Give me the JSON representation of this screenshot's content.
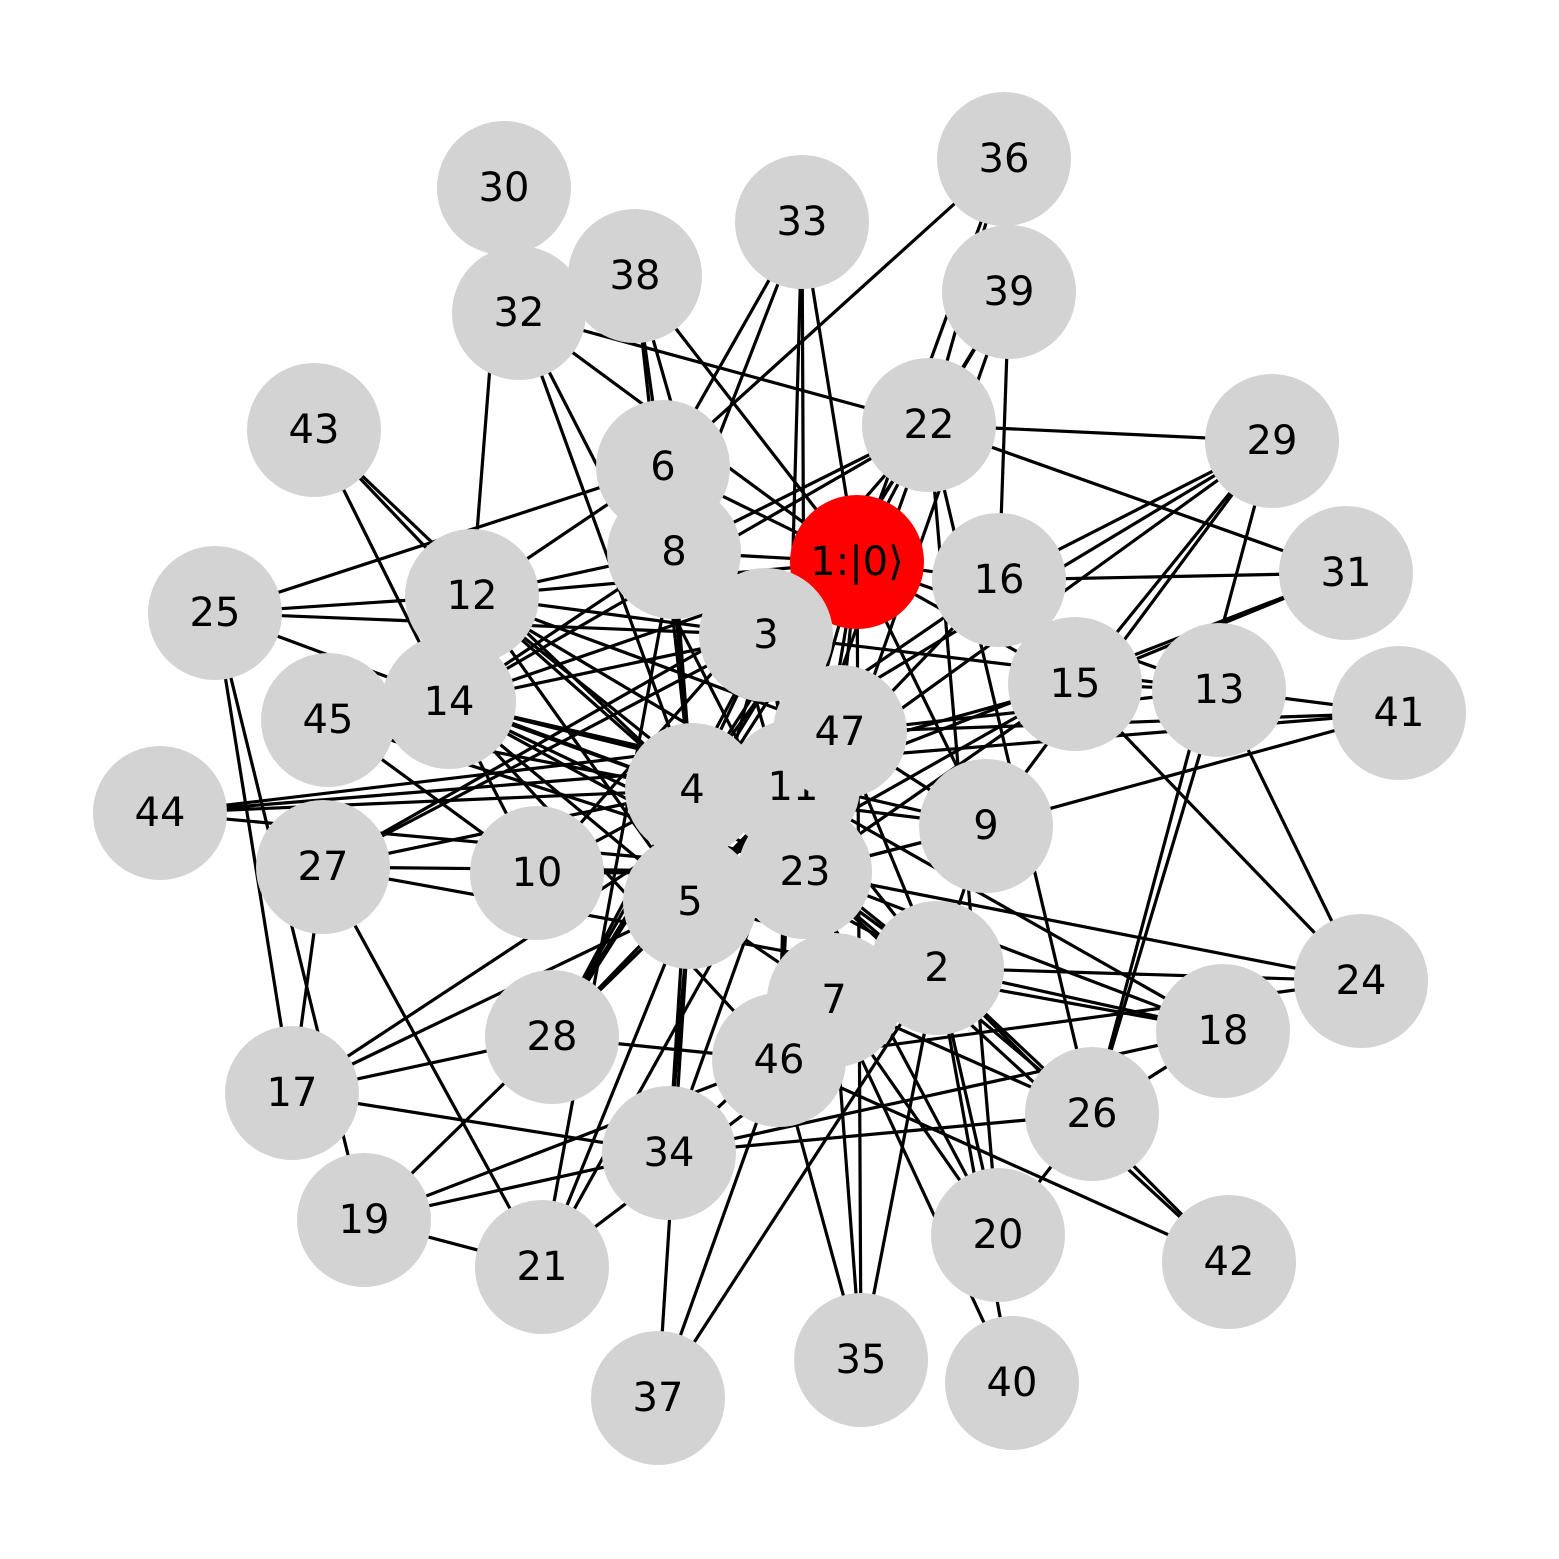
{
  "graph": {
    "node_color": "#d3d3d3",
    "highlight_color": "#ff0000",
    "edge_color": "#000000",
    "nodes": [
      {
        "id": 1,
        "label": "1:|0⟩",
        "highlight": true
      },
      {
        "id": 2,
        "label": "2"
      },
      {
        "id": 3,
        "label": "3"
      },
      {
        "id": 4,
        "label": "4"
      },
      {
        "id": 5,
        "label": "5"
      },
      {
        "id": 6,
        "label": "6"
      },
      {
        "id": 7,
        "label": "7"
      },
      {
        "id": 8,
        "label": "8"
      },
      {
        "id": 9,
        "label": "9"
      },
      {
        "id": 10,
        "label": "10"
      },
      {
        "id": 11,
        "label": "11"
      },
      {
        "id": 12,
        "label": "12"
      },
      {
        "id": 13,
        "label": "13"
      },
      {
        "id": 14,
        "label": "14"
      },
      {
        "id": 15,
        "label": "15"
      },
      {
        "id": 16,
        "label": "16"
      },
      {
        "id": 17,
        "label": "17"
      },
      {
        "id": 18,
        "label": "18"
      },
      {
        "id": 19,
        "label": "19"
      },
      {
        "id": 20,
        "label": "20"
      },
      {
        "id": 21,
        "label": "21"
      },
      {
        "id": 22,
        "label": "22"
      },
      {
        "id": 23,
        "label": "23"
      },
      {
        "id": 24,
        "label": "24"
      },
      {
        "id": 25,
        "label": "25"
      },
      {
        "id": 26,
        "label": "26"
      },
      {
        "id": 27,
        "label": "27"
      },
      {
        "id": 28,
        "label": "28"
      },
      {
        "id": 29,
        "label": "29"
      },
      {
        "id": 30,
        "label": "30"
      },
      {
        "id": 31,
        "label": "31"
      },
      {
        "id": 32,
        "label": "32"
      },
      {
        "id": 33,
        "label": "33"
      },
      {
        "id": 34,
        "label": "34"
      },
      {
        "id": 35,
        "label": "35"
      },
      {
        "id": 36,
        "label": "36"
      },
      {
        "id": 37,
        "label": "37"
      },
      {
        "id": 38,
        "label": "38"
      },
      {
        "id": 39,
        "label": "39"
      },
      {
        "id": 40,
        "label": "40"
      },
      {
        "id": 41,
        "label": "41"
      },
      {
        "id": 42,
        "label": "42"
      },
      {
        "id": 43,
        "label": "43"
      },
      {
        "id": 44,
        "label": "44"
      },
      {
        "id": 45,
        "label": "45"
      },
      {
        "id": 46,
        "label": "46"
      },
      {
        "id": 47,
        "label": "47"
      }
    ],
    "edges": [
      [
        1,
        3
      ],
      [
        1,
        4
      ],
      [
        1,
        5
      ],
      [
        1,
        6
      ],
      [
        1,
        8
      ],
      [
        1,
        9
      ],
      [
        1,
        11
      ],
      [
        1,
        12
      ],
      [
        1,
        13
      ],
      [
        1,
        14
      ],
      [
        1,
        15
      ],
      [
        1,
        16
      ],
      [
        1,
        22
      ],
      [
        1,
        23
      ],
      [
        1,
        27
      ],
      [
        1,
        28
      ],
      [
        1,
        32
      ],
      [
        1,
        33
      ],
      [
        1,
        35
      ],
      [
        1,
        36
      ],
      [
        1,
        38
      ],
      [
        1,
        47
      ],
      [
        2,
        4
      ],
      [
        2,
        5
      ],
      [
        2,
        7
      ],
      [
        2,
        9
      ],
      [
        2,
        11
      ],
      [
        2,
        12
      ],
      [
        2,
        14
      ],
      [
        2,
        18
      ],
      [
        2,
        20
      ],
      [
        2,
        21
      ],
      [
        2,
        23
      ],
      [
        2,
        24
      ],
      [
        2,
        26
      ],
      [
        2,
        35
      ],
      [
        2,
        37
      ],
      [
        2,
        40
      ],
      [
        2,
        42
      ],
      [
        2,
        47
      ],
      [
        3,
        4
      ],
      [
        3,
        5
      ],
      [
        3,
        8
      ],
      [
        3,
        11
      ],
      [
        3,
        12
      ],
      [
        3,
        13
      ],
      [
        3,
        14
      ],
      [
        3,
        23
      ],
      [
        3,
        25
      ],
      [
        3,
        27
      ],
      [
        3,
        28
      ],
      [
        3,
        47
      ],
      [
        4,
        5
      ],
      [
        4,
        6
      ],
      [
        4,
        8
      ],
      [
        4,
        9
      ],
      [
        4,
        10
      ],
      [
        4,
        11
      ],
      [
        4,
        12
      ],
      [
        4,
        14
      ],
      [
        4,
        15
      ],
      [
        4,
        16
      ],
      [
        4,
        22
      ],
      [
        4,
        23
      ],
      [
        4,
        25
      ],
      [
        4,
        27
      ],
      [
        4,
        28
      ],
      [
        4,
        29
      ],
      [
        4,
        32
      ],
      [
        4,
        34
      ],
      [
        4,
        38
      ],
      [
        4,
        43
      ],
      [
        4,
        44
      ],
      [
        4,
        45
      ],
      [
        4,
        47
      ],
      [
        5,
        7
      ],
      [
        5,
        9
      ],
      [
        5,
        11
      ],
      [
        5,
        12
      ],
      [
        5,
        14
      ],
      [
        5,
        15
      ],
      [
        5,
        16
      ],
      [
        5,
        17
      ],
      [
        5,
        19
      ],
      [
        5,
        21
      ],
      [
        5,
        23
      ],
      [
        5,
        28
      ],
      [
        5,
        34
      ],
      [
        5,
        37
      ],
      [
        5,
        47
      ],
      [
        6,
        12
      ],
      [
        6,
        25
      ],
      [
        6,
        33
      ],
      [
        6,
        36
      ],
      [
        6,
        47
      ],
      [
        7,
        11
      ],
      [
        7,
        20
      ],
      [
        7,
        23
      ],
      [
        7,
        26
      ],
      [
        7,
        34
      ],
      [
        7,
        35
      ],
      [
        7,
        40
      ],
      [
        7,
        47
      ],
      [
        8,
        12
      ],
      [
        8,
        14
      ],
      [
        8,
        21
      ],
      [
        8,
        22
      ],
      [
        8,
        33
      ],
      [
        8,
        38
      ],
      [
        9,
        14
      ],
      [
        9,
        23
      ],
      [
        9,
        29
      ],
      [
        9,
        41
      ],
      [
        9,
        47
      ],
      [
        10,
        14
      ],
      [
        10,
        22
      ],
      [
        10,
        23
      ],
      [
        10,
        45
      ],
      [
        11,
        12
      ],
      [
        11,
        14
      ],
      [
        11,
        18
      ],
      [
        11,
        23
      ],
      [
        11,
        28
      ],
      [
        11,
        29
      ],
      [
        11,
        31
      ],
      [
        11,
        46
      ],
      [
        12,
        25
      ],
      [
        12,
        30
      ],
      [
        12,
        43
      ],
      [
        12,
        47
      ],
      [
        13,
        15
      ],
      [
        13,
        24
      ],
      [
        13,
        26
      ],
      [
        13,
        41
      ],
      [
        13,
        47
      ],
      [
        14,
        22
      ],
      [
        14,
        23
      ],
      [
        14,
        43
      ],
      [
        14,
        46
      ],
      [
        15,
        23
      ],
      [
        15,
        24
      ],
      [
        15,
        29
      ],
      [
        15,
        31
      ],
      [
        16,
        29
      ],
      [
        16,
        31
      ],
      [
        16,
        39
      ],
      [
        17,
        25
      ],
      [
        17,
        27
      ],
      [
        17,
        28
      ],
      [
        17,
        34
      ],
      [
        17,
        47
      ],
      [
        18,
        19
      ],
      [
        18,
        23
      ],
      [
        18,
        26
      ],
      [
        18,
        27
      ],
      [
        19,
        21
      ],
      [
        19,
        25
      ],
      [
        19,
        46
      ],
      [
        20,
        22
      ],
      [
        20,
        23
      ],
      [
        20,
        26
      ],
      [
        21,
        27
      ],
      [
        21,
        47
      ],
      [
        22,
        26
      ],
      [
        22,
        29
      ],
      [
        22,
        31
      ],
      [
        22,
        32
      ],
      [
        22,
        34
      ],
      [
        22,
        36
      ],
      [
        22,
        39
      ],
      [
        23,
        24
      ],
      [
        23,
        26
      ],
      [
        23,
        27
      ],
      [
        23,
        32
      ],
      [
        23,
        33
      ],
      [
        23,
        38
      ],
      [
        23,
        39
      ],
      [
        23,
        42
      ],
      [
        23,
        44
      ],
      [
        23,
        45
      ],
      [
        24,
        46
      ],
      [
        26,
        29
      ],
      [
        26,
        34
      ],
      [
        28,
        39
      ],
      [
        28,
        46
      ],
      [
        32,
        38
      ],
      [
        33,
        46
      ],
      [
        35,
        46
      ],
      [
        37,
        46
      ],
      [
        41,
        44
      ],
      [
        41,
        47
      ],
      [
        42,
        46
      ],
      [
        44,
        47
      ]
    ]
  }
}
